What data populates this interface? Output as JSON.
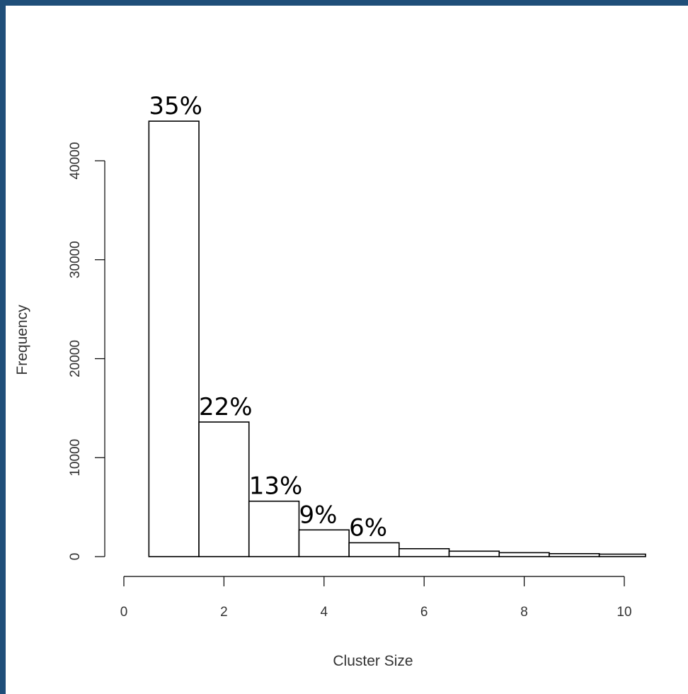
{
  "chart_data": {
    "type": "bar",
    "title": "",
    "xlabel": "Cluster Size",
    "ylabel": "Frequency",
    "xlim": [
      0,
      10.4
    ],
    "ylim": [
      0,
      40000
    ],
    "x_ticks": [
      0,
      2,
      4,
      6,
      8,
      10
    ],
    "y_ticks": [
      0,
      10000,
      20000,
      30000,
      40000
    ],
    "grid": false,
    "bars": [
      {
        "x": 1,
        "value": 44000,
        "label": "35%"
      },
      {
        "x": 2,
        "value": 13600,
        "label": "22%"
      },
      {
        "x": 3,
        "value": 5600,
        "label": "13%"
      },
      {
        "x": 4,
        "value": 2700,
        "label": "9%"
      },
      {
        "x": 5,
        "value": 1400,
        "label": "6%"
      },
      {
        "x": 6,
        "value": 800,
        "label": ""
      },
      {
        "x": 7,
        "value": 550,
        "label": ""
      },
      {
        "x": 8,
        "value": 400,
        "label": ""
      },
      {
        "x": 9,
        "value": 300,
        "label": ""
      },
      {
        "x": 10,
        "value": 250,
        "label": ""
      }
    ]
  }
}
